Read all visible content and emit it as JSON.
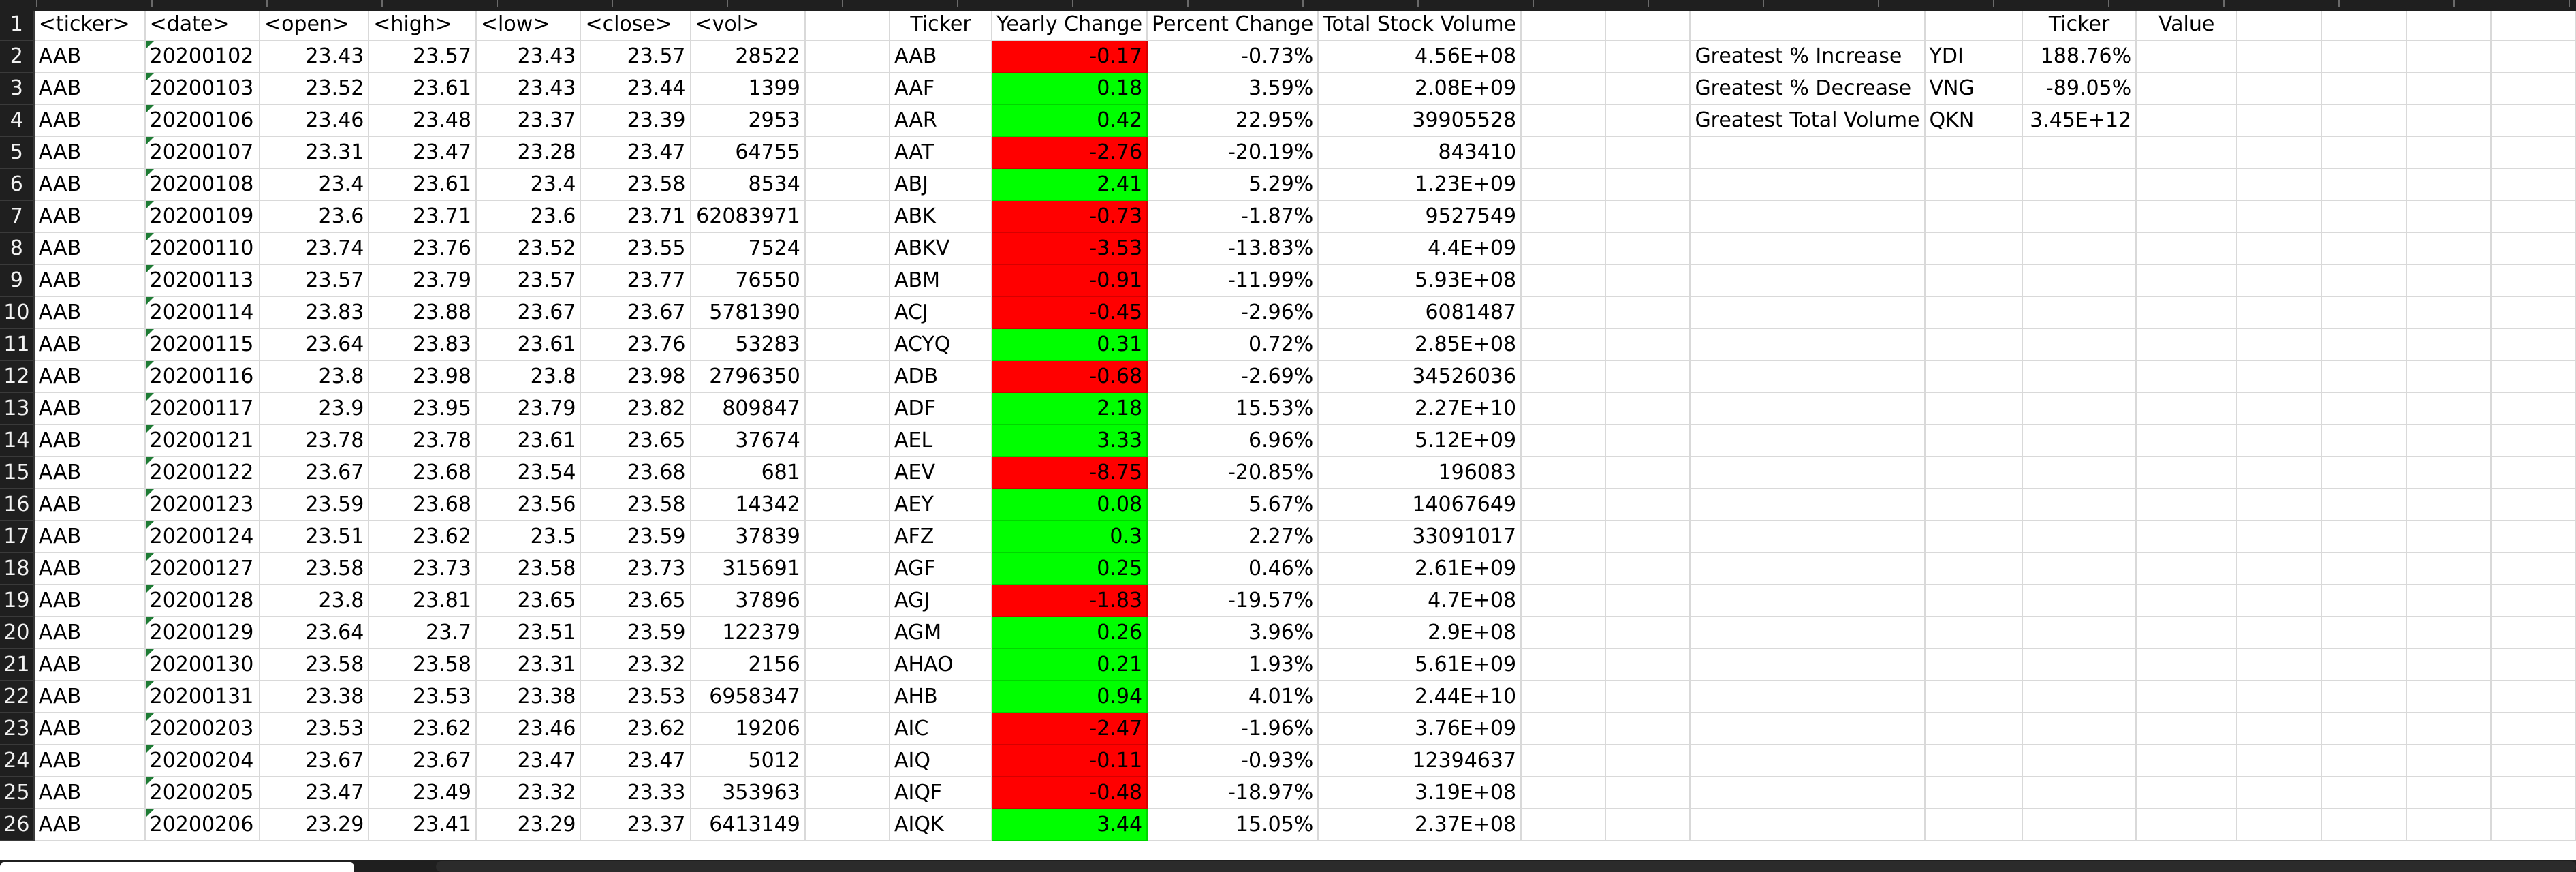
{
  "columns": [
    "<ticker>",
    "<date>",
    "<open>",
    "<high>",
    "<low>",
    "<close>",
    "<vol>",
    "",
    "Ticker",
    "Yearly Change",
    "Percent Change",
    "Total Stock Volume",
    "",
    "",
    "",
    "",
    "Ticker",
    "Value"
  ],
  "summary_labels": [
    "Greatest % Increase",
    "Greatest % Decrease",
    "Greatest Total Volume"
  ],
  "summary_tickers": [
    "YDI",
    "VNG",
    "QKN"
  ],
  "summary_values": [
    "188.76%",
    "-89.05%",
    "3.45E+12"
  ],
  "rows": [
    {
      "t": "AAB",
      "d": "20200102",
      "o": "23.43",
      "h": "23.57",
      "l": "23.43",
      "c": "23.57",
      "v": "28522",
      "tk": "AAB",
      "yc": "-0.17",
      "pc": "-0.73%",
      "tv": "4.56E+08"
    },
    {
      "t": "AAB",
      "d": "20200103",
      "o": "23.52",
      "h": "23.61",
      "l": "23.43",
      "c": "23.44",
      "v": "1399",
      "tk": "AAF",
      "yc": "0.18",
      "pc": "3.59%",
      "tv": "2.08E+09"
    },
    {
      "t": "AAB",
      "d": "20200106",
      "o": "23.46",
      "h": "23.48",
      "l": "23.37",
      "c": "23.39",
      "v": "2953",
      "tk": "AAR",
      "yc": "0.42",
      "pc": "22.95%",
      "tv": "39905528"
    },
    {
      "t": "AAB",
      "d": "20200107",
      "o": "23.31",
      "h": "23.47",
      "l": "23.28",
      "c": "23.47",
      "v": "64755",
      "tk": "AAT",
      "yc": "-2.76",
      "pc": "-20.19%",
      "tv": "843410"
    },
    {
      "t": "AAB",
      "d": "20200108",
      "o": "23.4",
      "h": "23.61",
      "l": "23.4",
      "c": "23.58",
      "v": "8534",
      "tk": "ABJ",
      "yc": "2.41",
      "pc": "5.29%",
      "tv": "1.23E+09"
    },
    {
      "t": "AAB",
      "d": "20200109",
      "o": "23.6",
      "h": "23.71",
      "l": "23.6",
      "c": "23.71",
      "v": "62083971",
      "tk": "ABK",
      "yc": "-0.73",
      "pc": "-1.87%",
      "tv": "9527549"
    },
    {
      "t": "AAB",
      "d": "20200110",
      "o": "23.74",
      "h": "23.76",
      "l": "23.52",
      "c": "23.55",
      "v": "7524",
      "tk": "ABKV",
      "yc": "-3.53",
      "pc": "-13.83%",
      "tv": "4.4E+09"
    },
    {
      "t": "AAB",
      "d": "20200113",
      "o": "23.57",
      "h": "23.79",
      "l": "23.57",
      "c": "23.77",
      "v": "76550",
      "tk": "ABM",
      "yc": "-0.91",
      "pc": "-11.99%",
      "tv": "5.93E+08"
    },
    {
      "t": "AAB",
      "d": "20200114",
      "o": "23.83",
      "h": "23.88",
      "l": "23.67",
      "c": "23.67",
      "v": "5781390",
      "tk": "ACJ",
      "yc": "-0.45",
      "pc": "-2.96%",
      "tv": "6081487"
    },
    {
      "t": "AAB",
      "d": "20200115",
      "o": "23.64",
      "h": "23.83",
      "l": "23.61",
      "c": "23.76",
      "v": "53283",
      "tk": "ACYQ",
      "yc": "0.31",
      "pc": "0.72%",
      "tv": "2.85E+08"
    },
    {
      "t": "AAB",
      "d": "20200116",
      "o": "23.8",
      "h": "23.98",
      "l": "23.8",
      "c": "23.98",
      "v": "2796350",
      "tk": "ADB",
      "yc": "-0.68",
      "pc": "-2.69%",
      "tv": "34526036"
    },
    {
      "t": "AAB",
      "d": "20200117",
      "o": "23.9",
      "h": "23.95",
      "l": "23.79",
      "c": "23.82",
      "v": "809847",
      "tk": "ADF",
      "yc": "2.18",
      "pc": "15.53%",
      "tv": "2.27E+10"
    },
    {
      "t": "AAB",
      "d": "20200121",
      "o": "23.78",
      "h": "23.78",
      "l": "23.61",
      "c": "23.65",
      "v": "37674",
      "tk": "AEL",
      "yc": "3.33",
      "pc": "6.96%",
      "tv": "5.12E+09"
    },
    {
      "t": "AAB",
      "d": "20200122",
      "o": "23.67",
      "h": "23.68",
      "l": "23.54",
      "c": "23.68",
      "v": "681",
      "tk": "AEV",
      "yc": "-8.75",
      "pc": "-20.85%",
      "tv": "196083"
    },
    {
      "t": "AAB",
      "d": "20200123",
      "o": "23.59",
      "h": "23.68",
      "l": "23.56",
      "c": "23.58",
      "v": "14342",
      "tk": "AEY",
      "yc": "0.08",
      "pc": "5.67%",
      "tv": "14067649"
    },
    {
      "t": "AAB",
      "d": "20200124",
      "o": "23.51",
      "h": "23.62",
      "l": "23.5",
      "c": "23.59",
      "v": "37839",
      "tk": "AFZ",
      "yc": "0.3",
      "pc": "2.27%",
      "tv": "33091017"
    },
    {
      "t": "AAB",
      "d": "20200127",
      "o": "23.58",
      "h": "23.73",
      "l": "23.58",
      "c": "23.73",
      "v": "315691",
      "tk": "AGF",
      "yc": "0.25",
      "pc": "0.46%",
      "tv": "2.61E+09"
    },
    {
      "t": "AAB",
      "d": "20200128",
      "o": "23.8",
      "h": "23.81",
      "l": "23.65",
      "c": "23.65",
      "v": "37896",
      "tk": "AGJ",
      "yc": "-1.83",
      "pc": "-19.57%",
      "tv": "4.7E+08"
    },
    {
      "t": "AAB",
      "d": "20200129",
      "o": "23.64",
      "h": "23.7",
      "l": "23.51",
      "c": "23.59",
      "v": "122379",
      "tk": "AGM",
      "yc": "0.26",
      "pc": "3.96%",
      "tv": "2.9E+08"
    },
    {
      "t": "AAB",
      "d": "20200130",
      "o": "23.58",
      "h": "23.58",
      "l": "23.31",
      "c": "23.32",
      "v": "2156",
      "tk": "AHAO",
      "yc": "0.21",
      "pc": "1.93%",
      "tv": "5.61E+09"
    },
    {
      "t": "AAB",
      "d": "20200131",
      "o": "23.38",
      "h": "23.53",
      "l": "23.38",
      "c": "23.53",
      "v": "6958347",
      "tk": "AHB",
      "yc": "0.94",
      "pc": "4.01%",
      "tv": "2.44E+10"
    },
    {
      "t": "AAB",
      "d": "20200203",
      "o": "23.53",
      "h": "23.62",
      "l": "23.46",
      "c": "23.62",
      "v": "19206",
      "tk": "AIC",
      "yc": "-2.47",
      "pc": "-1.96%",
      "tv": "3.76E+09"
    },
    {
      "t": "AAB",
      "d": "20200204",
      "o": "23.67",
      "h": "23.67",
      "l": "23.47",
      "c": "23.47",
      "v": "5012",
      "tk": "AIQ",
      "yc": "-0.11",
      "pc": "-0.93%",
      "tv": "12394637"
    },
    {
      "t": "AAB",
      "d": "20200205",
      "o": "23.47",
      "h": "23.49",
      "l": "23.32",
      "c": "23.33",
      "v": "353963",
      "tk": "AIQF",
      "yc": "-0.48",
      "pc": "-18.97%",
      "tv": "3.19E+08"
    },
    {
      "t": "AAB",
      "d": "20200206",
      "o": "23.29",
      "h": "23.41",
      "l": "23.29",
      "c": "23.37",
      "v": "6413149",
      "tk": "AIQK",
      "yc": "3.44",
      "pc": "15.05%",
      "tv": "2.37E+08"
    }
  ],
  "colors": {
    "positive_fill": "#00ff00",
    "negative_fill": "#ff0000",
    "header_bg": "#1f1f1f"
  }
}
